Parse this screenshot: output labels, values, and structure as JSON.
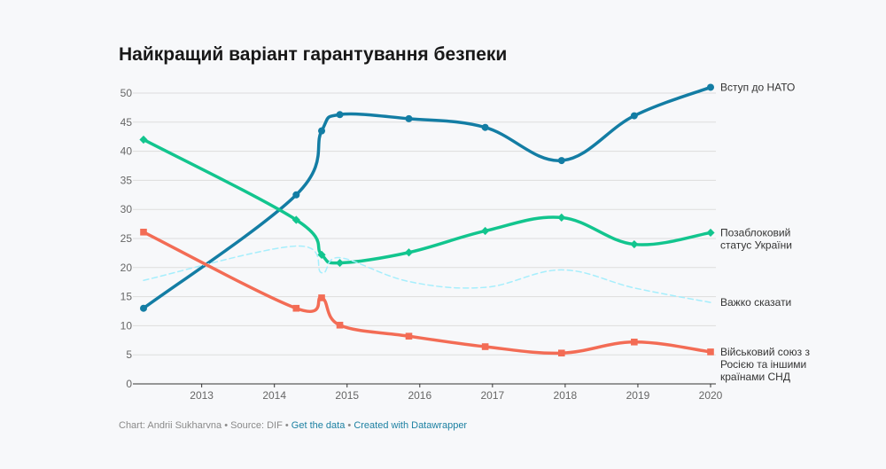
{
  "title": "Найкращий варіант гарантування безпеки",
  "footer": {
    "credit": "Chart: Andrii Sukharvna",
    "separator": " • ",
    "source": "Source: DIF",
    "get_data": "Get the data",
    "created_with": "Created with Datawrapper"
  },
  "chart_data": {
    "type": "line",
    "title": "Найкращий варіант гарантування безпеки",
    "xlabel": "",
    "ylabel": "",
    "xlim": [
      2012.2,
      2020
    ],
    "ylim": [
      0,
      50
    ],
    "x_ticks": [
      "2013",
      "2014",
      "2015",
      "2016",
      "2017",
      "2018",
      "2019",
      "2020"
    ],
    "y_ticks": [
      0,
      5,
      10,
      15,
      20,
      25,
      30,
      35,
      40,
      45,
      50
    ],
    "grid": true,
    "legend": "inline-right",
    "series": [
      {
        "name": "Вступ до НАТО",
        "label_lines": [
          "Вступ до НАТО"
        ],
        "color": "#137da4",
        "marker": "circle",
        "dashed": false,
        "points": [
          [
            2012.2,
            13.0
          ],
          [
            2014.3,
            32.5
          ],
          [
            2014.65,
            43.5
          ],
          [
            2014.9,
            46.3
          ],
          [
            2015.85,
            45.6
          ],
          [
            2016.9,
            44.1
          ],
          [
            2017.95,
            38.4
          ],
          [
            2018.95,
            46.1
          ],
          [
            2020.0,
            51.0
          ]
        ]
      },
      {
        "name": "Позаблоковий статус України",
        "label_lines": [
          "Позаблоковий",
          "статус України"
        ],
        "color": "#12c58e",
        "marker": "diamond",
        "dashed": false,
        "points": [
          [
            2012.2,
            42.0
          ],
          [
            2014.3,
            28.2
          ],
          [
            2014.65,
            22.2
          ],
          [
            2014.9,
            20.8
          ],
          [
            2015.85,
            22.6
          ],
          [
            2016.9,
            26.3
          ],
          [
            2017.95,
            28.6
          ],
          [
            2018.95,
            24.0
          ],
          [
            2020.0,
            26.0
          ]
        ]
      },
      {
        "name": "Важко сказати",
        "label_lines": [
          "Важко сказати"
        ],
        "color": "#a6eefc",
        "marker": "none",
        "dashed": true,
        "points": [
          [
            2012.2,
            17.8
          ],
          [
            2014.3,
            23.7
          ],
          [
            2014.65,
            19.1
          ],
          [
            2014.9,
            21.7
          ],
          [
            2015.85,
            17.6
          ],
          [
            2016.9,
            16.6
          ],
          [
            2017.95,
            19.6
          ],
          [
            2018.95,
            16.5
          ],
          [
            2020.0,
            14.0
          ]
        ]
      },
      {
        "name": "Військовий союз з Росією та іншими країнами СНД",
        "label_lines": [
          "Військовий союз з",
          "Росією та іншими",
          "країнами СНД"
        ],
        "color": "#f36c55",
        "marker": "square",
        "dashed": false,
        "points": [
          [
            2012.2,
            26.1
          ],
          [
            2014.3,
            13.0
          ],
          [
            2014.65,
            14.8
          ],
          [
            2014.9,
            10.1
          ],
          [
            2015.85,
            8.2
          ],
          [
            2016.9,
            6.4
          ],
          [
            2017.95,
            5.3
          ],
          [
            2018.95,
            7.2
          ],
          [
            2020.0,
            5.5
          ]
        ]
      }
    ]
  }
}
